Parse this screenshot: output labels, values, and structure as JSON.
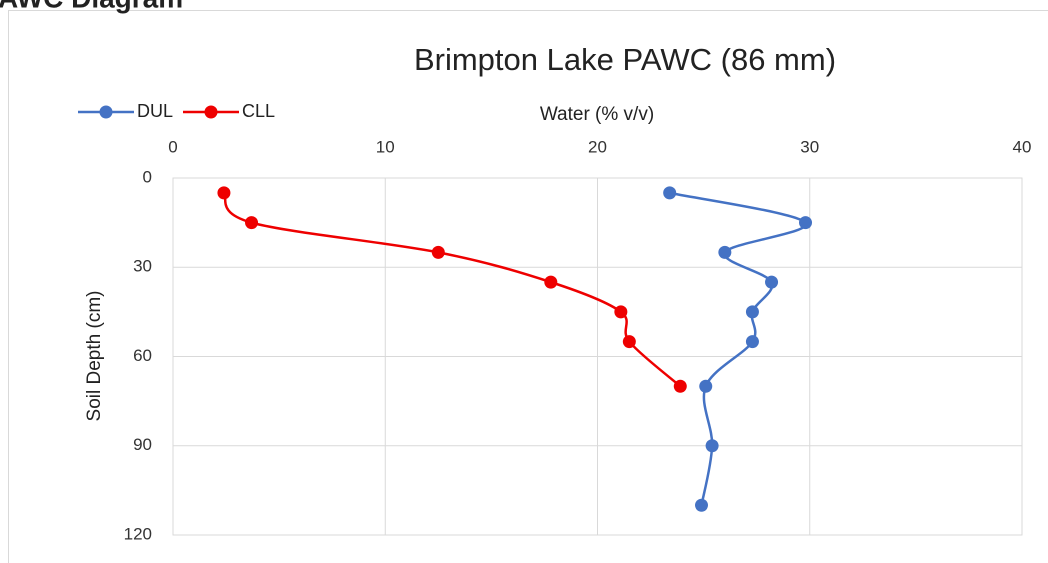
{
  "heading": "AWC Diagram",
  "chart_data": {
    "type": "line",
    "title": "Brimpton Lake PAWC (86 mm)",
    "x_label": "Water (% v/v)",
    "y_label": "Soil Depth (cm)",
    "xlim": [
      0,
      40
    ],
    "xticks": [
      0,
      10,
      20,
      30,
      40
    ],
    "ylim": [
      0,
      120
    ],
    "yticks": [
      0,
      30,
      60,
      90,
      120
    ],
    "y_inverted": true,
    "x_axis_position": "top",
    "grid": true,
    "legend": "top-left",
    "smooth": true,
    "series": [
      {
        "name": "DUL",
        "color": "#4472c4",
        "x": [
          23.4,
          29.8,
          26.0,
          28.2,
          27.3,
          27.3,
          25.1,
          25.4,
          24.9
        ],
        "y": [
          5,
          15,
          25,
          35,
          45,
          55,
          70,
          90,
          110
        ]
      },
      {
        "name": "CLL",
        "color": "#ee0000",
        "x": [
          2.4,
          3.7,
          12.5,
          17.8,
          21.1,
          21.5,
          23.9
        ],
        "y": [
          5,
          15,
          25,
          35,
          45,
          55,
          70
        ]
      }
    ]
  }
}
